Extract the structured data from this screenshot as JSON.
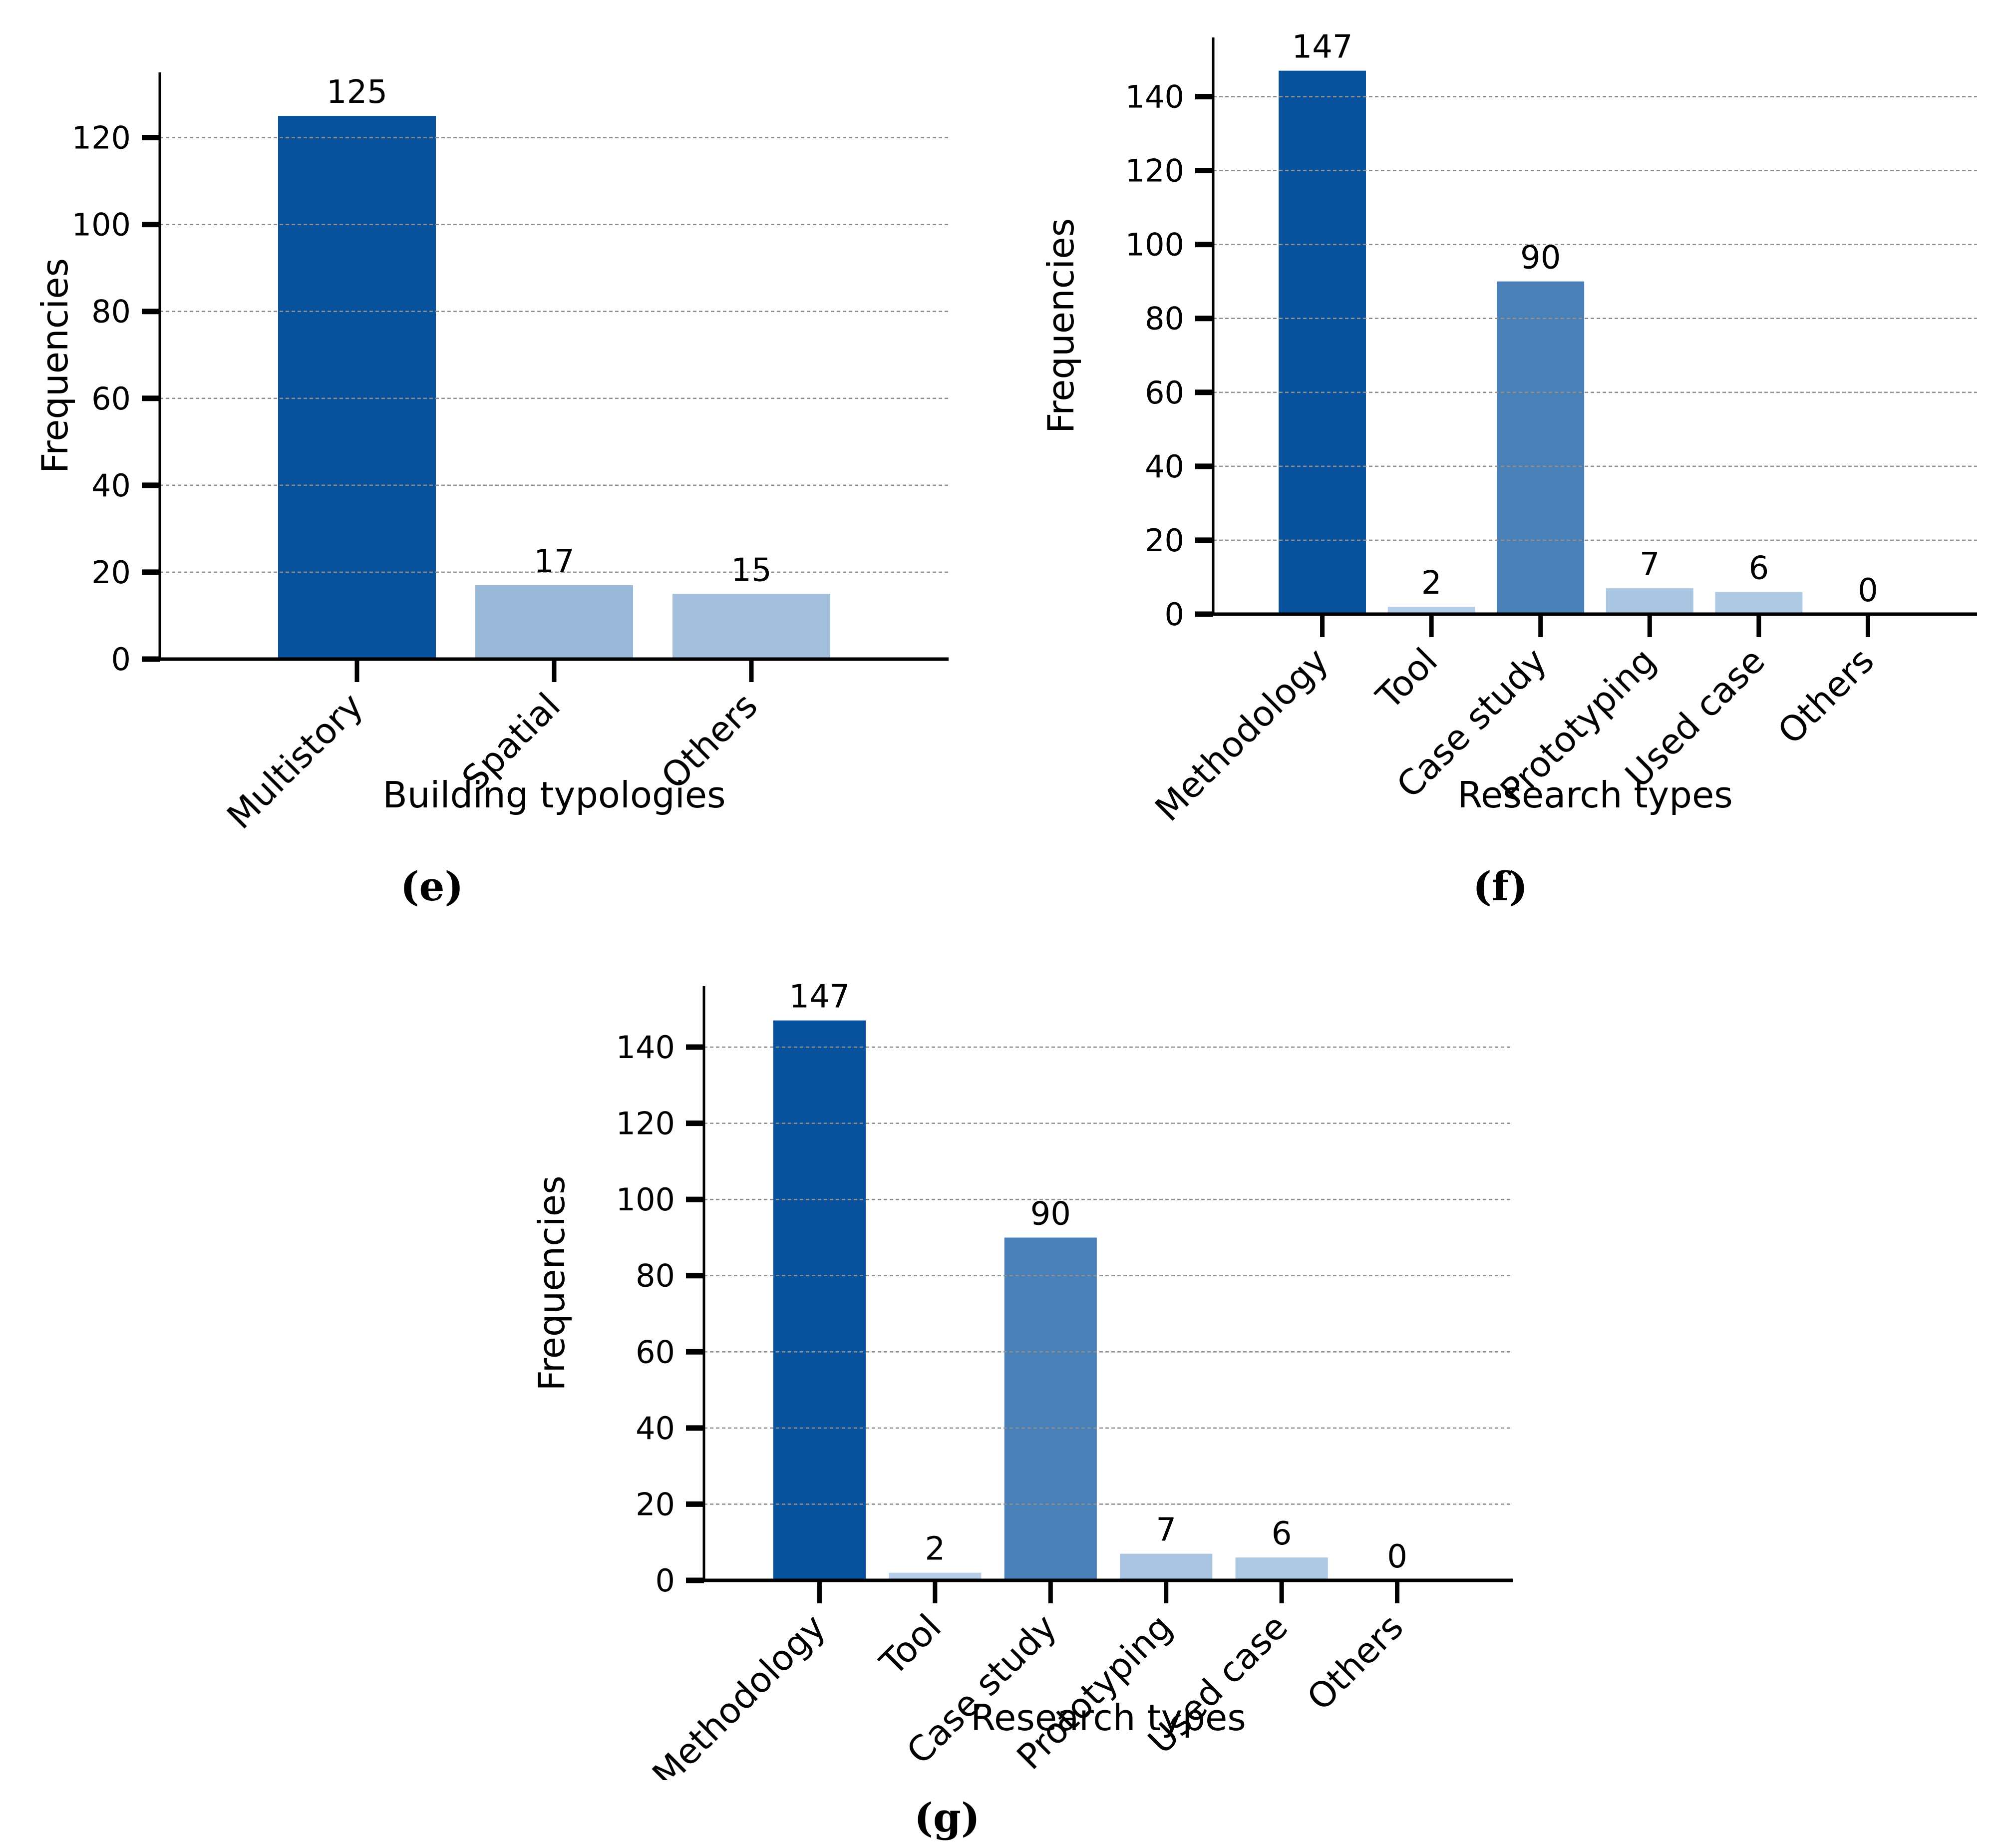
{
  "figure": {
    "background": "#ffffff",
    "text_color": "#000000",
    "grid_color": "#8f8f8f",
    "axis_color": "#000000"
  },
  "chart_data": [
    {
      "id": "e",
      "type": "bar",
      "title": "",
      "xlabel": "Building typologies",
      "ylabel": "Frequencies",
      "categories": [
        "Multistory",
        "Spatial",
        "Others"
      ],
      "values": [
        125,
        17,
        15
      ],
      "bar_colors": [
        "#08519c",
        "#9ab8d8",
        "#a3bfdd"
      ],
      "yticks": [
        0,
        20,
        40,
        60,
        80,
        100,
        120
      ],
      "ylim": [
        0,
        135
      ],
      "grid": "horizontal-dashed",
      "legend": null,
      "caption": "(e)"
    },
    {
      "id": "f",
      "type": "bar",
      "title": "",
      "xlabel": "Research types",
      "ylabel": "Frequencies",
      "categories": [
        "Methodology",
        "Tool",
        "Case study",
        "Prototyping",
        "Used case",
        "Others"
      ],
      "values": [
        147,
        2,
        90,
        7,
        6,
        0
      ],
      "bar_colors": [
        "#08519c",
        "#b6cee9",
        "#4a80b8",
        "#a9c5e2",
        "#aec9e4",
        "#c3d7ee"
      ],
      "yticks": [
        0,
        20,
        40,
        60,
        80,
        100,
        120,
        140
      ],
      "ylim": [
        0,
        156
      ],
      "grid": "horizontal-dashed",
      "legend": null,
      "caption": "(f)"
    },
    {
      "id": "g",
      "type": "bar",
      "title": "",
      "xlabel": "Research types",
      "ylabel": "Frequencies",
      "categories": [
        "Methodology",
        "Tool",
        "Case study",
        "Prototyping",
        "Used case",
        "Others"
      ],
      "values": [
        147,
        2,
        90,
        7,
        6,
        0
      ],
      "bar_colors": [
        "#08519c",
        "#b6cee9",
        "#4a80b8",
        "#a9c5e2",
        "#aec9e4",
        "#c3d7ee"
      ],
      "yticks": [
        0,
        20,
        40,
        60,
        80,
        100,
        120,
        140
      ],
      "ylim": [
        0,
        156
      ],
      "grid": "horizontal-dashed",
      "legend": null,
      "caption": "(g)"
    }
  ]
}
